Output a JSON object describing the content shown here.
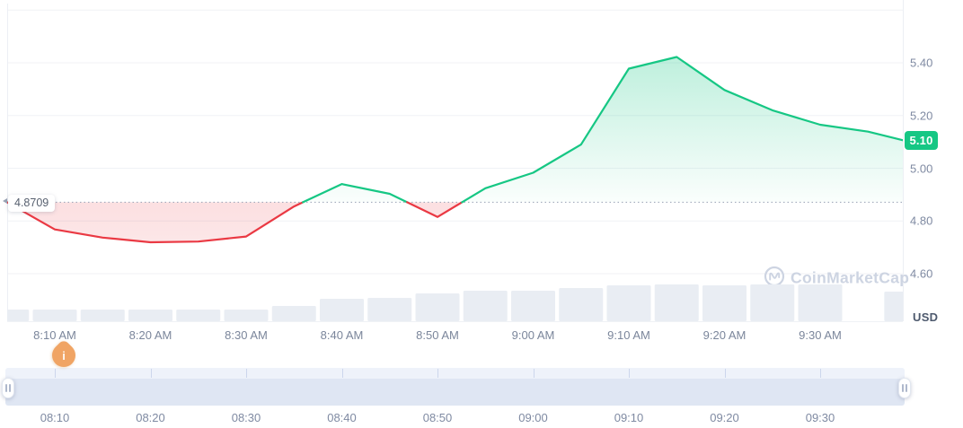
{
  "chart_data": {
    "type": "line",
    "subtype": "price-line-with-volume-bars",
    "unit": "USD",
    "baseline": 4.8709,
    "baseline_label": "4.8709",
    "current_price": 5.1,
    "current_price_label": "5.10",
    "x": [
      "8:05 AM",
      "8:10 AM",
      "8:15 AM",
      "8:20 AM",
      "8:25 AM",
      "8:30 AM",
      "8:35 AM",
      "8:40 AM",
      "8:45 AM",
      "8:50 AM",
      "8:55 AM",
      "9:00 AM",
      "9:05 AM",
      "9:10 AM",
      "9:15 AM",
      "9:20 AM",
      "9:25 AM",
      "9:30 AM",
      "9:35 AM",
      "9:39 AM"
    ],
    "price": [
      4.8709,
      4.768,
      4.737,
      4.719,
      4.722,
      4.741,
      4.855,
      4.94,
      4.903,
      4.815,
      4.924,
      4.983,
      5.09,
      5.378,
      5.422,
      5.297,
      5.22,
      5.165,
      5.139,
      5.103
    ],
    "volume_rel": [
      13,
      13,
      13,
      13,
      13,
      13,
      17,
      25,
      26,
      31,
      34,
      34,
      37,
      40,
      41,
      40,
      41,
      41,
      0,
      33
    ],
    "y_ticks": [
      "5.40",
      "5.20",
      "5.00",
      "4.80",
      "4.60"
    ],
    "x_ticks_chart": [
      "8:10 AM",
      "8:20 AM",
      "8:30 AM",
      "8:40 AM",
      "8:50 AM",
      "9:00 AM",
      "9:10 AM",
      "9:20 AM",
      "9:30 AM"
    ],
    "ylim": [
      4.5,
      5.6
    ],
    "grid": true,
    "legend": "none",
    "colors": {
      "up": "#16c784",
      "down": "#ea3943",
      "badge": "#16c784",
      "volume_bar": "#e9edf3",
      "grid_line": "#f0f2f6",
      "axis_border": "#eceff4",
      "baseline_dots": "#97a1b4",
      "watermark": "#cdd4e2"
    }
  },
  "watermark": {
    "label": "CoinMarketCap"
  },
  "info_pin": {
    "glyph": "i",
    "color": "#f0a464"
  },
  "navigator": {
    "labels": [
      "08:10",
      "08:20",
      "08:30",
      "08:40",
      "08:50",
      "09:00",
      "09:10",
      "09:20",
      "09:30"
    ]
  }
}
